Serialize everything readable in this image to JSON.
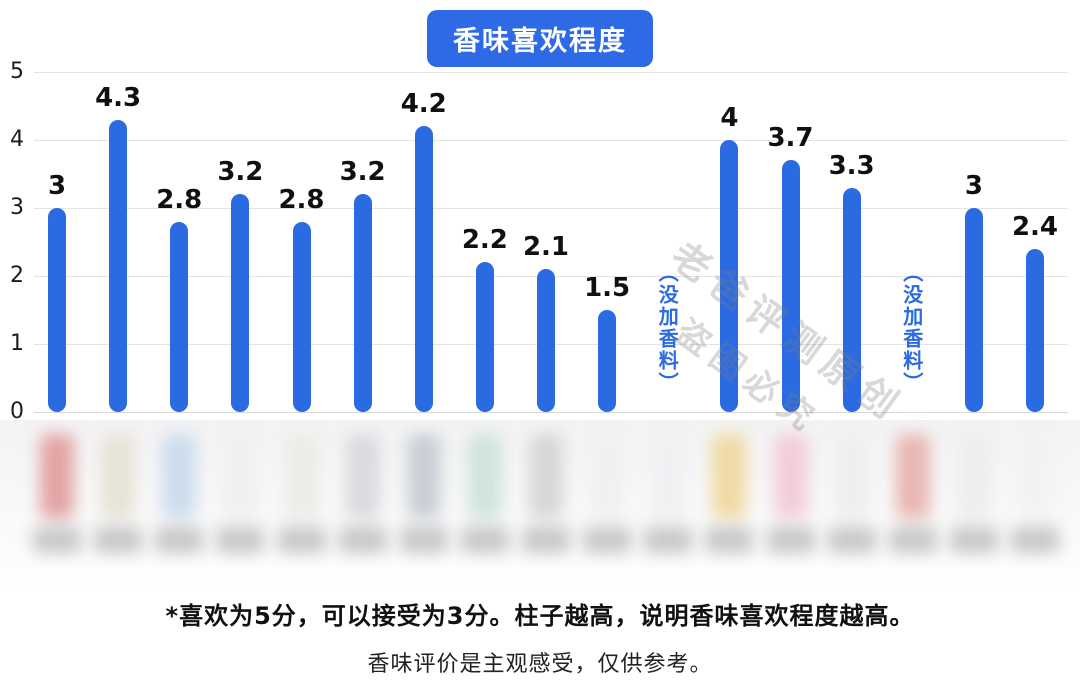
{
  "title": "香味喜欢程度",
  "watermark": {
    "line1": "老爸评测原创",
    "line2": "盗图必究"
  },
  "footer": {
    "line1": "*喜欢为5分，可以接受为3分。柱子越高，说明香味喜欢程度越高。",
    "line2": "香味评价是主观感受，仅供参考。"
  },
  "colors": {
    "accent_blue": "#2E6AE6",
    "bar_blue": "#2B6BE2",
    "gridline": "#e4e4e4",
    "value_label": "#101010"
  },
  "chart_data": {
    "type": "bar",
    "title": "香味喜欢程度",
    "ylabel": "",
    "xlabel": "",
    "ylim": [
      0,
      5
    ],
    "yticks": [
      0,
      1,
      2,
      3,
      4,
      5
    ],
    "grid": true,
    "legend": "none",
    "bar_color": "#2B6BE2",
    "note_text_meaning": "no fragrance added",
    "items": [
      {
        "value": 3
      },
      {
        "value": 4.3
      },
      {
        "value": 2.8
      },
      {
        "value": 3.2
      },
      {
        "value": 2.8
      },
      {
        "value": 3.2
      },
      {
        "value": 4.2
      },
      {
        "value": 2.2
      },
      {
        "value": 2.1
      },
      {
        "value": 1.5
      },
      {
        "note": "（没加香料）"
      },
      {
        "value": 4
      },
      {
        "value": 3.7
      },
      {
        "value": 3.3
      },
      {
        "note": "（没加香料）"
      },
      {
        "value": 3
      },
      {
        "value": 2.4
      }
    ]
  },
  "products_blur": {
    "caption_color": "#c7c7c7",
    "bottle_colors": [
      "#e2a3a3",
      "#e7e2d6",
      "#ccdcec",
      "#f0eff1",
      "#edebe7",
      "#d9dade",
      "#c9ced6",
      "#cfe2dd",
      "#d6d6d6",
      "#f0f0f0",
      "#eef0f2",
      "#f0d9a4",
      "#f2cdd9",
      "#efeeec",
      "#e8b6b2",
      "#ededed",
      "#f2f2f2"
    ]
  }
}
